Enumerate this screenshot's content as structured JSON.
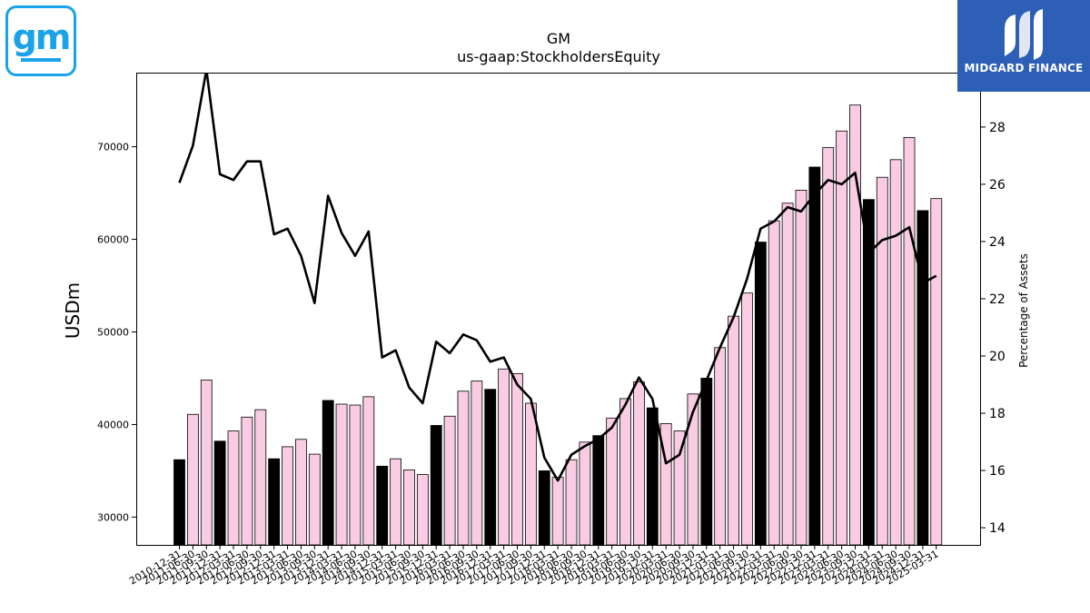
{
  "logos": {
    "gm": "gm",
    "brand": "MIDGARD FINANCE"
  },
  "colors": {
    "accent_bar": "#000000",
    "regular_bar": "#f9cce3",
    "bar_edge": "#000000",
    "line": "#000000",
    "gm_blue": "#1aa3e8",
    "midgard_blue": "#2d5fb6"
  },
  "chart_data": {
    "type": "bar",
    "title": "GM",
    "subtitle": "us-gaap:StockholdersEquity",
    "ylabel": "USDm",
    "y2label": "Percentage of Assets",
    "ylim": [
      27000,
      78000
    ],
    "y2lim": [
      13.4,
      29.9
    ],
    "yticks": [
      30000,
      40000,
      50000,
      60000,
      70000
    ],
    "y2ticks": [
      14,
      16,
      18,
      20,
      22,
      24,
      26,
      28
    ],
    "grid": false,
    "categories": [
      "2010-12-31",
      "2011-06-30",
      "2011-09-30",
      "2011-12-31",
      "2012-03-31",
      "2012-06-30",
      "2012-09-30",
      "2012-12-31",
      "2013-03-31",
      "2013-06-30",
      "2013-09-30",
      "2013-12-31",
      "2014-03-31",
      "2014-06-30",
      "2014-09-30",
      "2014-12-31",
      "2015-03-31",
      "2015-06-30",
      "2015-09-30",
      "2015-12-31",
      "2016-03-31",
      "2016-06-30",
      "2016-09-30",
      "2016-12-31",
      "2017-03-31",
      "2017-06-30",
      "2017-09-30",
      "2017-12-31",
      "2018-03-31",
      "2018-06-30",
      "2018-09-30",
      "2018-12-31",
      "2019-03-31",
      "2019-06-30",
      "2019-09-30",
      "2019-12-31",
      "2020-03-31",
      "2020-06-30",
      "2020-09-30",
      "2020-12-31",
      "2021-03-31",
      "2021-06-30",
      "2021-09-30",
      "2021-12-31",
      "2022-03-31",
      "2022-06-30",
      "2022-09-30",
      "2022-12-31",
      "2023-03-31",
      "2023-06-30",
      "2023-09-30",
      "2023-12-31",
      "2024-03-31",
      "2024-06-30",
      "2024-09-30",
      "2024-12-31",
      "2025-03-31"
    ],
    "series": [
      {
        "type": "bar",
        "values": [
          36200,
          41100,
          44800,
          38200,
          39300,
          40800,
          41600,
          36300,
          37600,
          38400,
          36800,
          42600,
          42200,
          42100,
          43000,
          35500,
          36300,
          35100,
          34600,
          39900,
          40900,
          43600,
          44700,
          43800,
          46000,
          45500,
          42300,
          35000,
          34300,
          36200,
          38100,
          38800,
          40700,
          42800,
          44600,
          41800,
          40100,
          39300,
          43300,
          45000,
          48300,
          51700,
          54200,
          59700,
          62000,
          63900,
          65300,
          67800,
          69900,
          71700,
          74500,
          64300,
          66700,
          68600,
          71000,
          63100,
          64400
        ],
        "year_end": [
          true,
          false,
          false,
          true,
          false,
          false,
          false,
          true,
          false,
          false,
          false,
          true,
          false,
          false,
          false,
          true,
          false,
          false,
          false,
          true,
          false,
          false,
          false,
          true,
          false,
          false,
          false,
          true,
          false,
          false,
          false,
          true,
          false,
          false,
          false,
          true,
          false,
          false,
          false,
          true,
          false,
          false,
          false,
          true,
          false,
          false,
          false,
          true,
          false,
          false,
          false,
          true,
          false,
          false,
          false,
          true,
          false
        ]
      },
      {
        "type": "line",
        "axis": "right",
        "values": [
          26.05,
          27.35,
          30.0,
          26.35,
          26.15,
          26.8,
          26.8,
          24.25,
          24.45,
          23.5,
          21.85,
          25.6,
          24.3,
          23.5,
          24.35,
          19.95,
          20.2,
          18.9,
          18.35,
          20.5,
          20.1,
          20.75,
          20.55,
          19.8,
          19.95,
          19.0,
          18.5,
          16.45,
          15.65,
          16.55,
          16.85,
          17.1,
          17.5,
          18.3,
          19.25,
          18.5,
          16.25,
          16.55,
          18.05,
          19.15,
          20.3,
          21.35,
          22.7,
          24.45,
          24.7,
          25.2,
          25.05,
          25.65,
          26.15,
          26.0,
          26.4,
          23.6,
          24.05,
          24.2,
          24.5,
          22.55,
          22.8
        ]
      }
    ]
  }
}
